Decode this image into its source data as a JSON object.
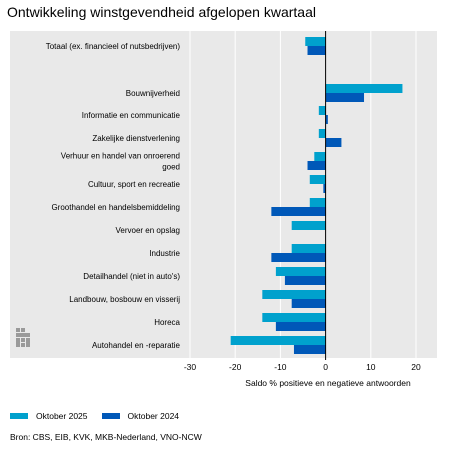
{
  "title": "Ontwikkeling winstgevendheid afgelopen kwartaal",
  "source": "Bron: CBS, EIB, KVK, MKB-Nederland, VNO-NCW",
  "colors": {
    "series1": "#00a1cd",
    "series2": "#0058b8",
    "plot_bg": "#e9e9e9",
    "grid": "#ffffff"
  },
  "chart_data": {
    "type": "bar",
    "orientation": "horizontal",
    "xlabel": "Saldo % positieve en negatieve antwoorden",
    "xlim": [
      -30,
      20
    ],
    "xticks": [
      -30,
      -20,
      -10,
      0,
      10,
      20
    ],
    "xtick_labels": [
      "-30",
      "-20",
      "-10",
      "0",
      "10",
      "20"
    ],
    "grid": true,
    "legend_position": "bottom",
    "categories": [
      "Totaal (ex. financieel of nutsbedrijven)",
      "Bouwnijverheid",
      "Informatie en communicatie",
      "Zakelijke dienstverlening",
      "Verhuur en handel van onroerend goed",
      "Cultuur, sport en recreatie",
      "Groothandel en handelsbemiddeling",
      "Vervoer en opslag",
      "Industrie",
      "Detailhandel (niet in auto's)",
      "Landbouw, bosbouw en visserij",
      "Horeca",
      "Autohandel en -reparatie"
    ],
    "category_label_lines": [
      [
        "Totaal (ex. financieel of nutsbedrijven)"
      ],
      [
        "Bouwnijverheid"
      ],
      [
        "Informatie en communicatie"
      ],
      [
        "Zakelijke dienstverlening"
      ],
      [
        "Verhuur en handel van onroerend",
        "goed"
      ],
      [
        "Cultuur, sport en recreatie"
      ],
      [
        "Groothandel en handelsbemiddeling"
      ],
      [
        "Vervoer en opslag"
      ],
      [
        "Industrie"
      ],
      [
        "Detailhandel (niet in auto's)"
      ],
      [
        "Landbouw, bosbouw en visserij"
      ],
      [
        "Horeca"
      ],
      [
        "Autohandel en -reparatie"
      ]
    ],
    "series": [
      {
        "name": "Oktober 2025",
        "values": [
          -4.5,
          17,
          -1.5,
          -1.5,
          -2.5,
          -3.5,
          -3.5,
          -7.5,
          -7.5,
          -11,
          -14,
          -14,
          -21
        ]
      },
      {
        "name": "Oktober 2024",
        "values": [
          -4,
          8.5,
          0.5,
          3.5,
          -4,
          -0.5,
          -12,
          null,
          -12,
          -9,
          -7.5,
          -11,
          -7
        ]
      }
    ]
  }
}
